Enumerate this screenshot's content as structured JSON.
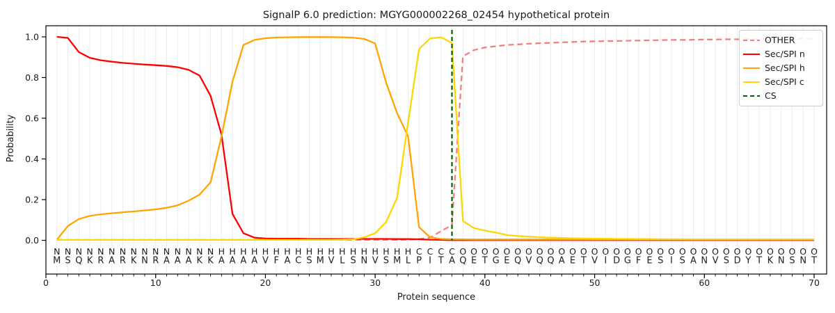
{
  "title": "SignalP 6.0 prediction: MGYG000002268_02454 hypothetical protein",
  "axes": {
    "xlabel": "Protein sequence",
    "ylabel": "Probability",
    "xticks": [
      0,
      10,
      20,
      30,
      40,
      50,
      60,
      70
    ],
    "yticks": [
      "0.0",
      "0.2",
      "0.4",
      "0.6",
      "0.8",
      "1.0"
    ]
  },
  "legend": [
    {
      "label": "OTHER",
      "color": "#f08080",
      "style": "dashed"
    },
    {
      "label": "Sec/SPI n",
      "color": "#ff0000",
      "style": "solid"
    },
    {
      "label": "Sec/SPI h",
      "color": "#ffa500",
      "style": "solid"
    },
    {
      "label": "Sec/SPI c",
      "color": "#ffd700",
      "style": "solid"
    },
    {
      "label": "CS",
      "color": "#006400",
      "style": "dashed"
    }
  ],
  "chart_data": {
    "type": "line",
    "title": "SignalP 6.0 prediction: MGYG000002268_02454 hypothetical protein",
    "xlabel": "Protein sequence",
    "ylabel": "Probability",
    "xlim": [
      0,
      71
    ],
    "ylim": [
      0,
      1.0
    ],
    "grid": "light vertical gridline at every residue position 1-70",
    "legend_position": "upper right",
    "x_positions": "residues 1 through 70, one value per residue",
    "sequence": "MSQKRARKNRAAAKKAAAAVFACSMVLSNVSMLPITAQETGEQVQQAETVIDGFESISANVSDYTKNSNT",
    "region_labels": "NNNNNNNNNNNNNNNHHHHHHHHHHHHHHHHHHCCCCOOOOOOOOOOOOOOOOOOOOOOOOOOOOOOOOO",
    "region_letter_colors": {
      "N": "#ff0000",
      "H": "#ffa500",
      "C": "#ffd700",
      "O": "#8a8a8a"
    },
    "cs_line": {
      "position": 37,
      "color": "#006400",
      "style": "dashed",
      "label": "CS"
    },
    "series": [
      {
        "name": "OTHER",
        "color": "#f08080",
        "style": "dashed",
        "values": [
          0.002,
          0.002,
          0.002,
          0.002,
          0.002,
          0.002,
          0.002,
          0.002,
          0.002,
          0.002,
          0.002,
          0.002,
          0.002,
          0.002,
          0.002,
          0.002,
          0.002,
          0.002,
          0.002,
          0.002,
          0.002,
          0.002,
          0.002,
          0.002,
          0.002,
          0.002,
          0.002,
          0.002,
          0.002,
          0.002,
          0.002,
          0.002,
          0.003,
          0.006,
          0.013,
          0.045,
          0.075,
          0.905,
          0.935,
          0.948,
          0.954,
          0.96,
          0.963,
          0.966,
          0.969,
          0.971,
          0.973,
          0.975,
          0.977,
          0.978,
          0.979,
          0.98,
          0.981,
          0.982,
          0.983,
          0.984,
          0.985,
          0.985,
          0.986,
          0.987,
          0.987,
          0.988,
          0.988,
          0.989,
          0.989,
          0.99,
          0.99,
          0.991,
          0.991,
          0.992
        ]
      },
      {
        "name": "Sec/SPI n",
        "color": "#ff0000",
        "style": "solid",
        "values": [
          1.0,
          0.995,
          0.925,
          0.897,
          0.885,
          0.878,
          0.872,
          0.868,
          0.864,
          0.861,
          0.857,
          0.851,
          0.838,
          0.81,
          0.71,
          0.52,
          0.13,
          0.035,
          0.013,
          0.009,
          0.008,
          0.008,
          0.008,
          0.007,
          0.007,
          0.007,
          0.007,
          0.007,
          0.007,
          0.007,
          0.007,
          0.006,
          0.006,
          0.005,
          0.003,
          0.002,
          0.001,
          0.001,
          0.001,
          0.001,
          0.001,
          0.001,
          0.001,
          0.001,
          0.001,
          0.001,
          0.001,
          0.001,
          0.001,
          0.001,
          0.001,
          0.001,
          0.001,
          0.001,
          0.001,
          0.001,
          0.001,
          0.001,
          0.001,
          0.001,
          0.001,
          0.001,
          0.001,
          0.001,
          0.001,
          0.001,
          0.001,
          0.001,
          0.001,
          0.001
        ]
      },
      {
        "name": "Sec/SPI h",
        "color": "#ffa500",
        "style": "solid",
        "values": [
          0.003,
          0.07,
          0.105,
          0.12,
          0.128,
          0.133,
          0.138,
          0.142,
          0.147,
          0.152,
          0.16,
          0.172,
          0.195,
          0.225,
          0.285,
          0.51,
          0.78,
          0.96,
          0.985,
          0.993,
          0.997,
          0.998,
          0.999,
          0.999,
          0.999,
          0.999,
          0.998,
          0.996,
          0.99,
          0.968,
          0.775,
          0.625,
          0.51,
          0.065,
          0.015,
          0.007,
          0.005,
          0.005,
          0.004,
          0.004,
          0.004,
          0.004,
          0.004,
          0.004,
          0.004,
          0.004,
          0.004,
          0.004,
          0.004,
          0.004,
          0.004,
          0.004,
          0.004,
          0.004,
          0.004,
          0.004,
          0.004,
          0.004,
          0.004,
          0.004,
          0.004,
          0.004,
          0.004,
          0.004,
          0.004,
          0.004,
          0.004,
          0.004,
          0.004,
          0.004
        ]
      },
      {
        "name": "Sec/SPI c",
        "color": "#ffd700",
        "style": "solid",
        "values": [
          0.002,
          0.002,
          0.002,
          0.002,
          0.002,
          0.002,
          0.002,
          0.002,
          0.002,
          0.002,
          0.002,
          0.002,
          0.002,
          0.002,
          0.002,
          0.002,
          0.002,
          0.002,
          0.002,
          0.002,
          0.002,
          0.002,
          0.002,
          0.002,
          0.002,
          0.002,
          0.003,
          0.005,
          0.015,
          0.035,
          0.09,
          0.21,
          0.58,
          0.94,
          0.992,
          0.998,
          0.97,
          0.095,
          0.06,
          0.048,
          0.038,
          0.026,
          0.021,
          0.018,
          0.015,
          0.013,
          0.012,
          0.01,
          0.009,
          0.008,
          0.008,
          0.007,
          0.007,
          0.006,
          0.006,
          0.005,
          0.005,
          0.005,
          0.004,
          0.004,
          0.004,
          0.004,
          0.004,
          0.004,
          0.004,
          0.004,
          0.004,
          0.004,
          0.004,
          0.004
        ]
      }
    ]
  }
}
